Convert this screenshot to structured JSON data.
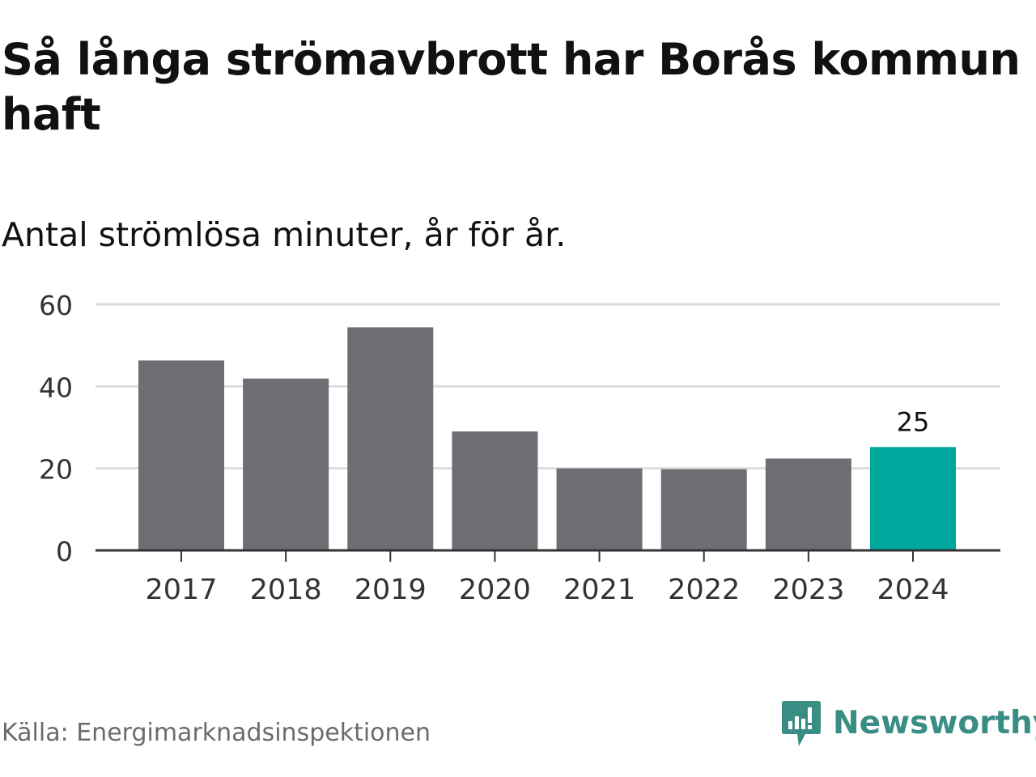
{
  "title": "Så långa strömavbrott har Borås kommun haft",
  "subtitle": "Antal strömlösa minuter, år för år.",
  "source": "Källa: Energimarknadsinspektionen",
  "brand": {
    "name": "Newsworthy",
    "icon": "newsworthy-logo-icon",
    "color": "#3a8d84"
  },
  "chart_data": {
    "type": "bar",
    "title": "Så långa strömavbrott har Borås kommun haft",
    "subtitle": "Antal strömlösa minuter, år för år.",
    "categories": [
      "2017",
      "2018",
      "2019",
      "2020",
      "2021",
      "2022",
      "2023",
      "2024"
    ],
    "values": [
      46.3,
      41.9,
      54.4,
      29,
      20,
      19.8,
      22.4,
      25.2
    ],
    "highlight_index": 7,
    "data_labels": [
      {
        "index": 7,
        "text": "25"
      }
    ],
    "ylim": [
      0,
      60
    ],
    "yticks": [
      "0",
      "20",
      "40",
      "60"
    ],
    "grid": true,
    "legend": "none",
    "colors": {
      "bar": "#6e6d74",
      "highlight": "#00a79d",
      "grid": "#dddddd",
      "axis": "#333333"
    }
  }
}
